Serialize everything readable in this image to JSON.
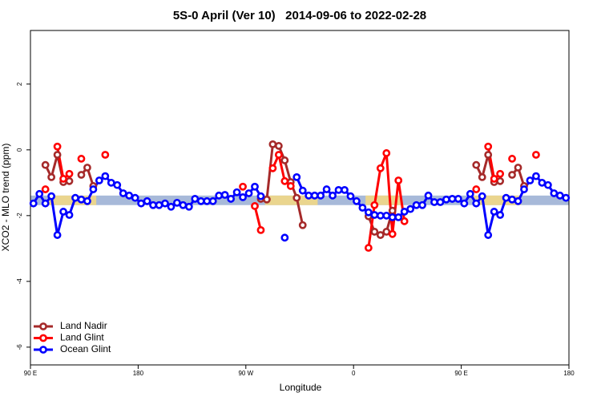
{
  "chart_data": {
    "type": "line",
    "title": "5S-0 April (Ver 10)   2014-09-06 to 2022-02-28",
    "x_label": "Longitude",
    "y_label": "XCO2 - MLO trend (ppm)",
    "xlim": [
      90,
      540
    ],
    "ylim": [
      -6.54,
      3.63
    ],
    "xticks": [
      {
        "value": 90,
        "label": "90 E"
      },
      {
        "value": 180,
        "label": "180"
      },
      {
        "value": 270,
        "label": "90 W"
      },
      {
        "value": 360,
        "label": "0"
      },
      {
        "value": 450,
        "label": "90 E"
      },
      {
        "value": 540,
        "label": "180"
      }
    ],
    "yticks": [
      -6,
      -4,
      -2,
      0,
      2
    ],
    "legend": "bottomleft",
    "band": {
      "y": [
        -1.68,
        -1.39
      ],
      "color": "#a7b9d9",
      "highlight_color": "#f6d980",
      "highlights": [
        [
          105,
          145
        ],
        [
          286,
          330
        ],
        [
          370,
          400
        ],
        [
          460,
          500
        ]
      ]
    },
    "x": [
      92.5,
      97.5,
      102.5,
      107.5,
      112.5,
      117.5,
      122.5,
      127.5,
      132.5,
      137.5,
      142.5,
      147.5,
      152.5,
      157.5,
      162.5,
      167.5,
      172.5,
      177.5,
      182.5,
      187.5,
      192.5,
      197.5,
      202.5,
      207.5,
      212.5,
      217.5,
      222.5,
      227.5,
      232.5,
      237.5,
      242.5,
      247.5,
      252.5,
      257.5,
      262.5,
      267.5,
      272.5,
      277.5,
      282.5,
      287.5,
      292.5,
      297.5,
      302.5,
      307.5,
      312.5,
      317.5,
      322.5,
      327.5,
      332.5,
      337.5,
      342.5,
      347.5,
      352.5,
      357.5,
      362.5,
      367.5,
      372.5,
      377.5,
      382.5,
      387.5,
      392.5,
      397.5,
      402.5,
      407.5,
      412.5,
      417.5,
      422.5,
      427.5,
      432.5,
      437.5,
      442.5,
      447.5,
      452.5,
      457.5,
      462.5,
      467.5,
      472.5,
      477.5,
      482.5,
      487.5,
      492.5,
      497.5,
      502.5,
      507.5,
      512.5,
      517.5,
      522.5,
      527.5,
      532.5,
      537.5
    ],
    "series": [
      {
        "name": "Land Nadir",
        "color": "#a52a2a",
        "values": [
          null,
          null,
          -0.46,
          -0.83,
          -0.15,
          -0.98,
          -0.95,
          null,
          -0.76,
          -0.54,
          -1.1,
          null,
          null,
          null,
          null,
          null,
          null,
          null,
          null,
          null,
          null,
          null,
          null,
          null,
          null,
          null,
          null,
          null,
          null,
          null,
          null,
          null,
          null,
          null,
          null,
          null,
          null,
          null,
          -1.49,
          -1.51,
          0.17,
          0.12,
          -0.32,
          -0.98,
          -1.46,
          -2.29,
          null,
          null,
          null,
          null,
          null,
          null,
          null,
          null,
          null,
          null,
          -2.02,
          -2.49,
          -2.59,
          -2.49,
          -1.85,
          null,
          null,
          null,
          null,
          null,
          null,
          null,
          null,
          null,
          null,
          null,
          null,
          null,
          -0.46,
          -0.83,
          -0.15,
          -0.98,
          -0.95,
          null,
          -0.76,
          -0.54,
          -1.1,
          null,
          null,
          null,
          null,
          null,
          null,
          null
        ]
      },
      {
        "name": "Land Glint",
        "color": "#ff0000",
        "values": [
          null,
          null,
          -1.2,
          null,
          0.1,
          -0.88,
          -0.73,
          null,
          -0.27,
          null,
          null,
          null,
          -0.15,
          null,
          null,
          null,
          null,
          null,
          null,
          null,
          null,
          null,
          null,
          null,
          null,
          null,
          null,
          null,
          null,
          null,
          null,
          null,
          null,
          null,
          null,
          -1.12,
          null,
          -1.71,
          -2.44,
          null,
          -0.56,
          -0.15,
          -0.95,
          -1.1,
          null,
          null,
          null,
          null,
          null,
          null,
          null,
          null,
          null,
          null,
          null,
          null,
          -2.98,
          -1.68,
          -0.56,
          -0.1,
          -2.56,
          -0.93,
          -2.17,
          null,
          null,
          null,
          null,
          null,
          null,
          null,
          null,
          null,
          null,
          null,
          -1.2,
          null,
          0.1,
          -0.88,
          -0.73,
          null,
          -0.27,
          null,
          null,
          null,
          -0.15,
          null,
          null,
          null,
          null,
          null
        ]
      },
      {
        "name": "Ocean Glint",
        "color": "#0000ff",
        "values": [
          -1.63,
          -1.34,
          -1.63,
          -1.41,
          -2.59,
          -1.88,
          -1.98,
          -1.46,
          -1.51,
          -1.56,
          -1.2,
          -0.93,
          -0.8,
          -1.0,
          -1.07,
          -1.32,
          -1.39,
          -1.46,
          -1.63,
          -1.56,
          -1.68,
          -1.68,
          -1.63,
          -1.73,
          -1.61,
          -1.68,
          -1.73,
          -1.49,
          -1.56,
          -1.56,
          -1.56,
          -1.39,
          -1.37,
          -1.49,
          -1.29,
          -1.44,
          -1.32,
          -1.12,
          -1.41,
          null,
          null,
          null,
          -2.67,
          null,
          -0.83,
          -1.24,
          -1.39,
          -1.39,
          -1.39,
          -1.2,
          -1.39,
          -1.22,
          -1.22,
          -1.41,
          -1.56,
          -1.76,
          -1.9,
          -1.98,
          -2.0,
          -2.0,
          -2.05,
          -2.05,
          -1.88,
          -1.8,
          -1.68,
          -1.68,
          -1.39,
          -1.59,
          -1.59,
          -1.51,
          -1.49,
          -1.49,
          -1.63,
          -1.34,
          -1.63,
          -1.41,
          -2.59,
          -1.88,
          -1.98,
          -1.46,
          -1.51,
          -1.56,
          -1.2,
          -0.93,
          -0.8,
          -1.0,
          -1.07,
          -1.32,
          -1.39,
          -1.46
        ]
      }
    ]
  }
}
